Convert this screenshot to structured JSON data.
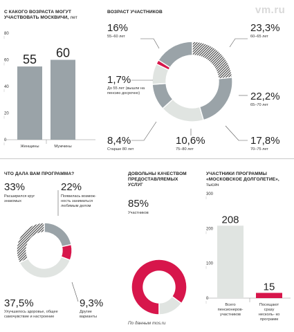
{
  "logo": "vm.ru",
  "source": "По данным mos.ru",
  "colors": {
    "gray": "#9aa3a8",
    "light": "#e0e4e1",
    "red": "#d7164b",
    "hatch": "#4a4a4a"
  },
  "chart_data": [
    {
      "type": "bar",
      "title": "С какого возраста могут участвовать москвичи,",
      "title_unit": "лет",
      "categories": [
        "Женщины",
        "Мужчины"
      ],
      "values": [
        55,
        60
      ],
      "value_labels": [
        "55",
        "60"
      ],
      "yticks": [
        "80",
        "60",
        "40",
        "20",
        "0"
      ],
      "ylim": [
        0,
        80
      ]
    },
    {
      "type": "pie",
      "title": "Возраст участников",
      "slices": [
        {
          "value": 23.3,
          "label": "23,3%",
          "caption": "60–65 лет",
          "color": "hatch"
        },
        {
          "value": 22.2,
          "label": "22,2%",
          "caption": "65–70 лет",
          "color": "gray"
        },
        {
          "value": 17.8,
          "label": "17,8%",
          "caption": "70–75 лет",
          "color": "light"
        },
        {
          "value": 10.6,
          "label": "10,6%",
          "caption": "75–80 лет",
          "color": "gray"
        },
        {
          "value": 8.4,
          "label": "8,4%",
          "caption": "Старше 80 лет",
          "color": "light"
        },
        {
          "value": 1.7,
          "label": "1,7%",
          "caption": "До 55 лет (вышли на пенсию досрочно)",
          "color": "red"
        },
        {
          "value": 16.0,
          "label": "16%",
          "caption": "55–60 лет",
          "color": "gray"
        }
      ]
    },
    {
      "type": "pie",
      "title": "Что дала вам программа?",
      "slices": [
        {
          "value": 22,
          "label": "22%",
          "caption": "Появилась возмож- ность заниматься любимым делом",
          "color": "gray"
        },
        {
          "value": 9.3,
          "label": "9,3%",
          "caption": "Другие варианты",
          "color": "red"
        },
        {
          "value": 37.5,
          "label": "37,5%",
          "caption": "Улучшилось здоровье, общее самочувствие и настроение",
          "color": "light"
        },
        {
          "value": 33,
          "label": "33%",
          "caption": "Расширился круг знакомых",
          "color": "hatch"
        }
      ]
    },
    {
      "type": "pie",
      "title": "Довольны качеством предоставляемых услуг",
      "slices": [
        {
          "value": 85,
          "label": "85%",
          "caption": "Участников",
          "color": "red"
        },
        {
          "value": 15,
          "color": "light"
        }
      ]
    },
    {
      "type": "bar",
      "title": "Участники программы «Московское долголетие»,",
      "title_unit": "тысяч",
      "categories": [
        "Всего пенсионеров- участников",
        "Посещают сразу несколь- ко программ"
      ],
      "values": [
        208,
        15
      ],
      "value_labels": [
        "208",
        "15"
      ],
      "yticks": [
        "300",
        "200",
        "100",
        "0"
      ],
      "ylim": [
        0,
        300
      ]
    }
  ]
}
